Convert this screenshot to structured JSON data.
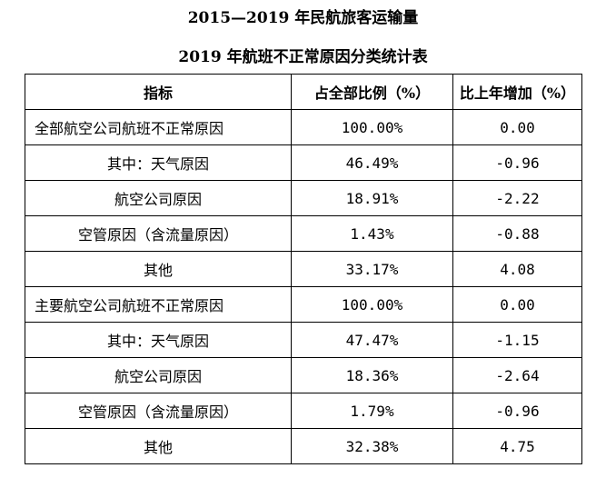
{
  "titles": {
    "line1": "2015—2019 年民航旅客运输量",
    "line2": "2019 年航班不正常原因分类统计表"
  },
  "table": {
    "headers": [
      "指标",
      "占全部比例（%）",
      "比上年增加（%）"
    ],
    "rows": [
      {
        "indicator": "全部航空公司航班不正常原因",
        "share": "100.00%",
        "change": "0.00",
        "level": "main"
      },
      {
        "indicator": "其中：天气原因",
        "share": "46.49%",
        "change": "-0.96",
        "level": "sub"
      },
      {
        "indicator": "航空公司原因",
        "share": "18.91%",
        "change": "-2.22",
        "level": "sub"
      },
      {
        "indicator": "空管原因（含流量原因）",
        "share": "1.43%",
        "change": "-0.88",
        "level": "sub"
      },
      {
        "indicator": "其他",
        "share": "33.17%",
        "change": "4.08",
        "level": "sub"
      },
      {
        "indicator": "主要航空公司航班不正常原因",
        "share": "100.00%",
        "change": "0.00",
        "level": "main"
      },
      {
        "indicator": "其中：天气原因",
        "share": "47.47%",
        "change": "-1.15",
        "level": "sub"
      },
      {
        "indicator": "航空公司原因",
        "share": "18.36%",
        "change": "-2.64",
        "level": "sub"
      },
      {
        "indicator": "空管原因（含流量原因）",
        "share": "1.79%",
        "change": "-0.96",
        "level": "sub"
      },
      {
        "indicator": "其他",
        "share": "32.38%",
        "change": "4.75",
        "level": "sub"
      }
    ]
  }
}
